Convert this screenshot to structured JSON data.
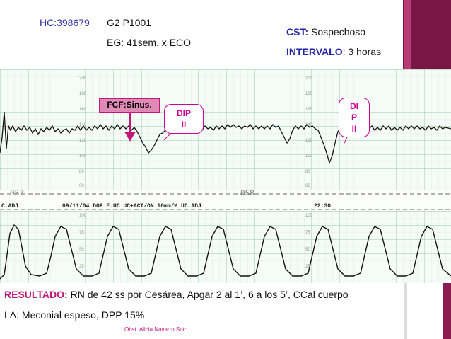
{
  "header": {
    "hc": "HC:398679",
    "gp": "G2 P1001",
    "eg": "EG: 41sem. x ECO",
    "cst_label": "CST:",
    "cst_value": " Sospechoso",
    "interval_label": "INTERVALO",
    "interval_value": ": 3 horas"
  },
  "annotations": {
    "fcf": "FCF:Sinus.",
    "dip1_line1": "DIP",
    "dip1_line2": "II",
    "dip2_line1": "DI",
    "dip2_line2": "P",
    "dip2_line3": "II"
  },
  "strip": {
    "page_left": "057",
    "page_right": "058",
    "print_left": "09/11/04  DOP E.UC UC+ACT/ON 10mm/M UC.ADJ",
    "print_right": "22:30",
    "print_first": "C.ADJ",
    "fhr_ticks": [
      "200",
      "180",
      "160",
      "140",
      "120",
      "100",
      "80",
      "60"
    ],
    "uc_ticks": [
      "100",
      "75",
      "50",
      "25"
    ]
  },
  "result": {
    "label": "RESULTADO:",
    "text": " RN de 42 ss por Cesárea, Apgar 2 al 1’, 6 a los 5’, CCal cuerpo",
    "line2": "LA: Meconial espeso,  DPP 15%"
  },
  "footer": {
    "author": "Obst. Alicia Navarro Soto"
  },
  "colors": {
    "accent": "#c2187a",
    "blue": "#2323a8",
    "grid": "#98c8a8",
    "deco": "#8a1c50"
  }
}
